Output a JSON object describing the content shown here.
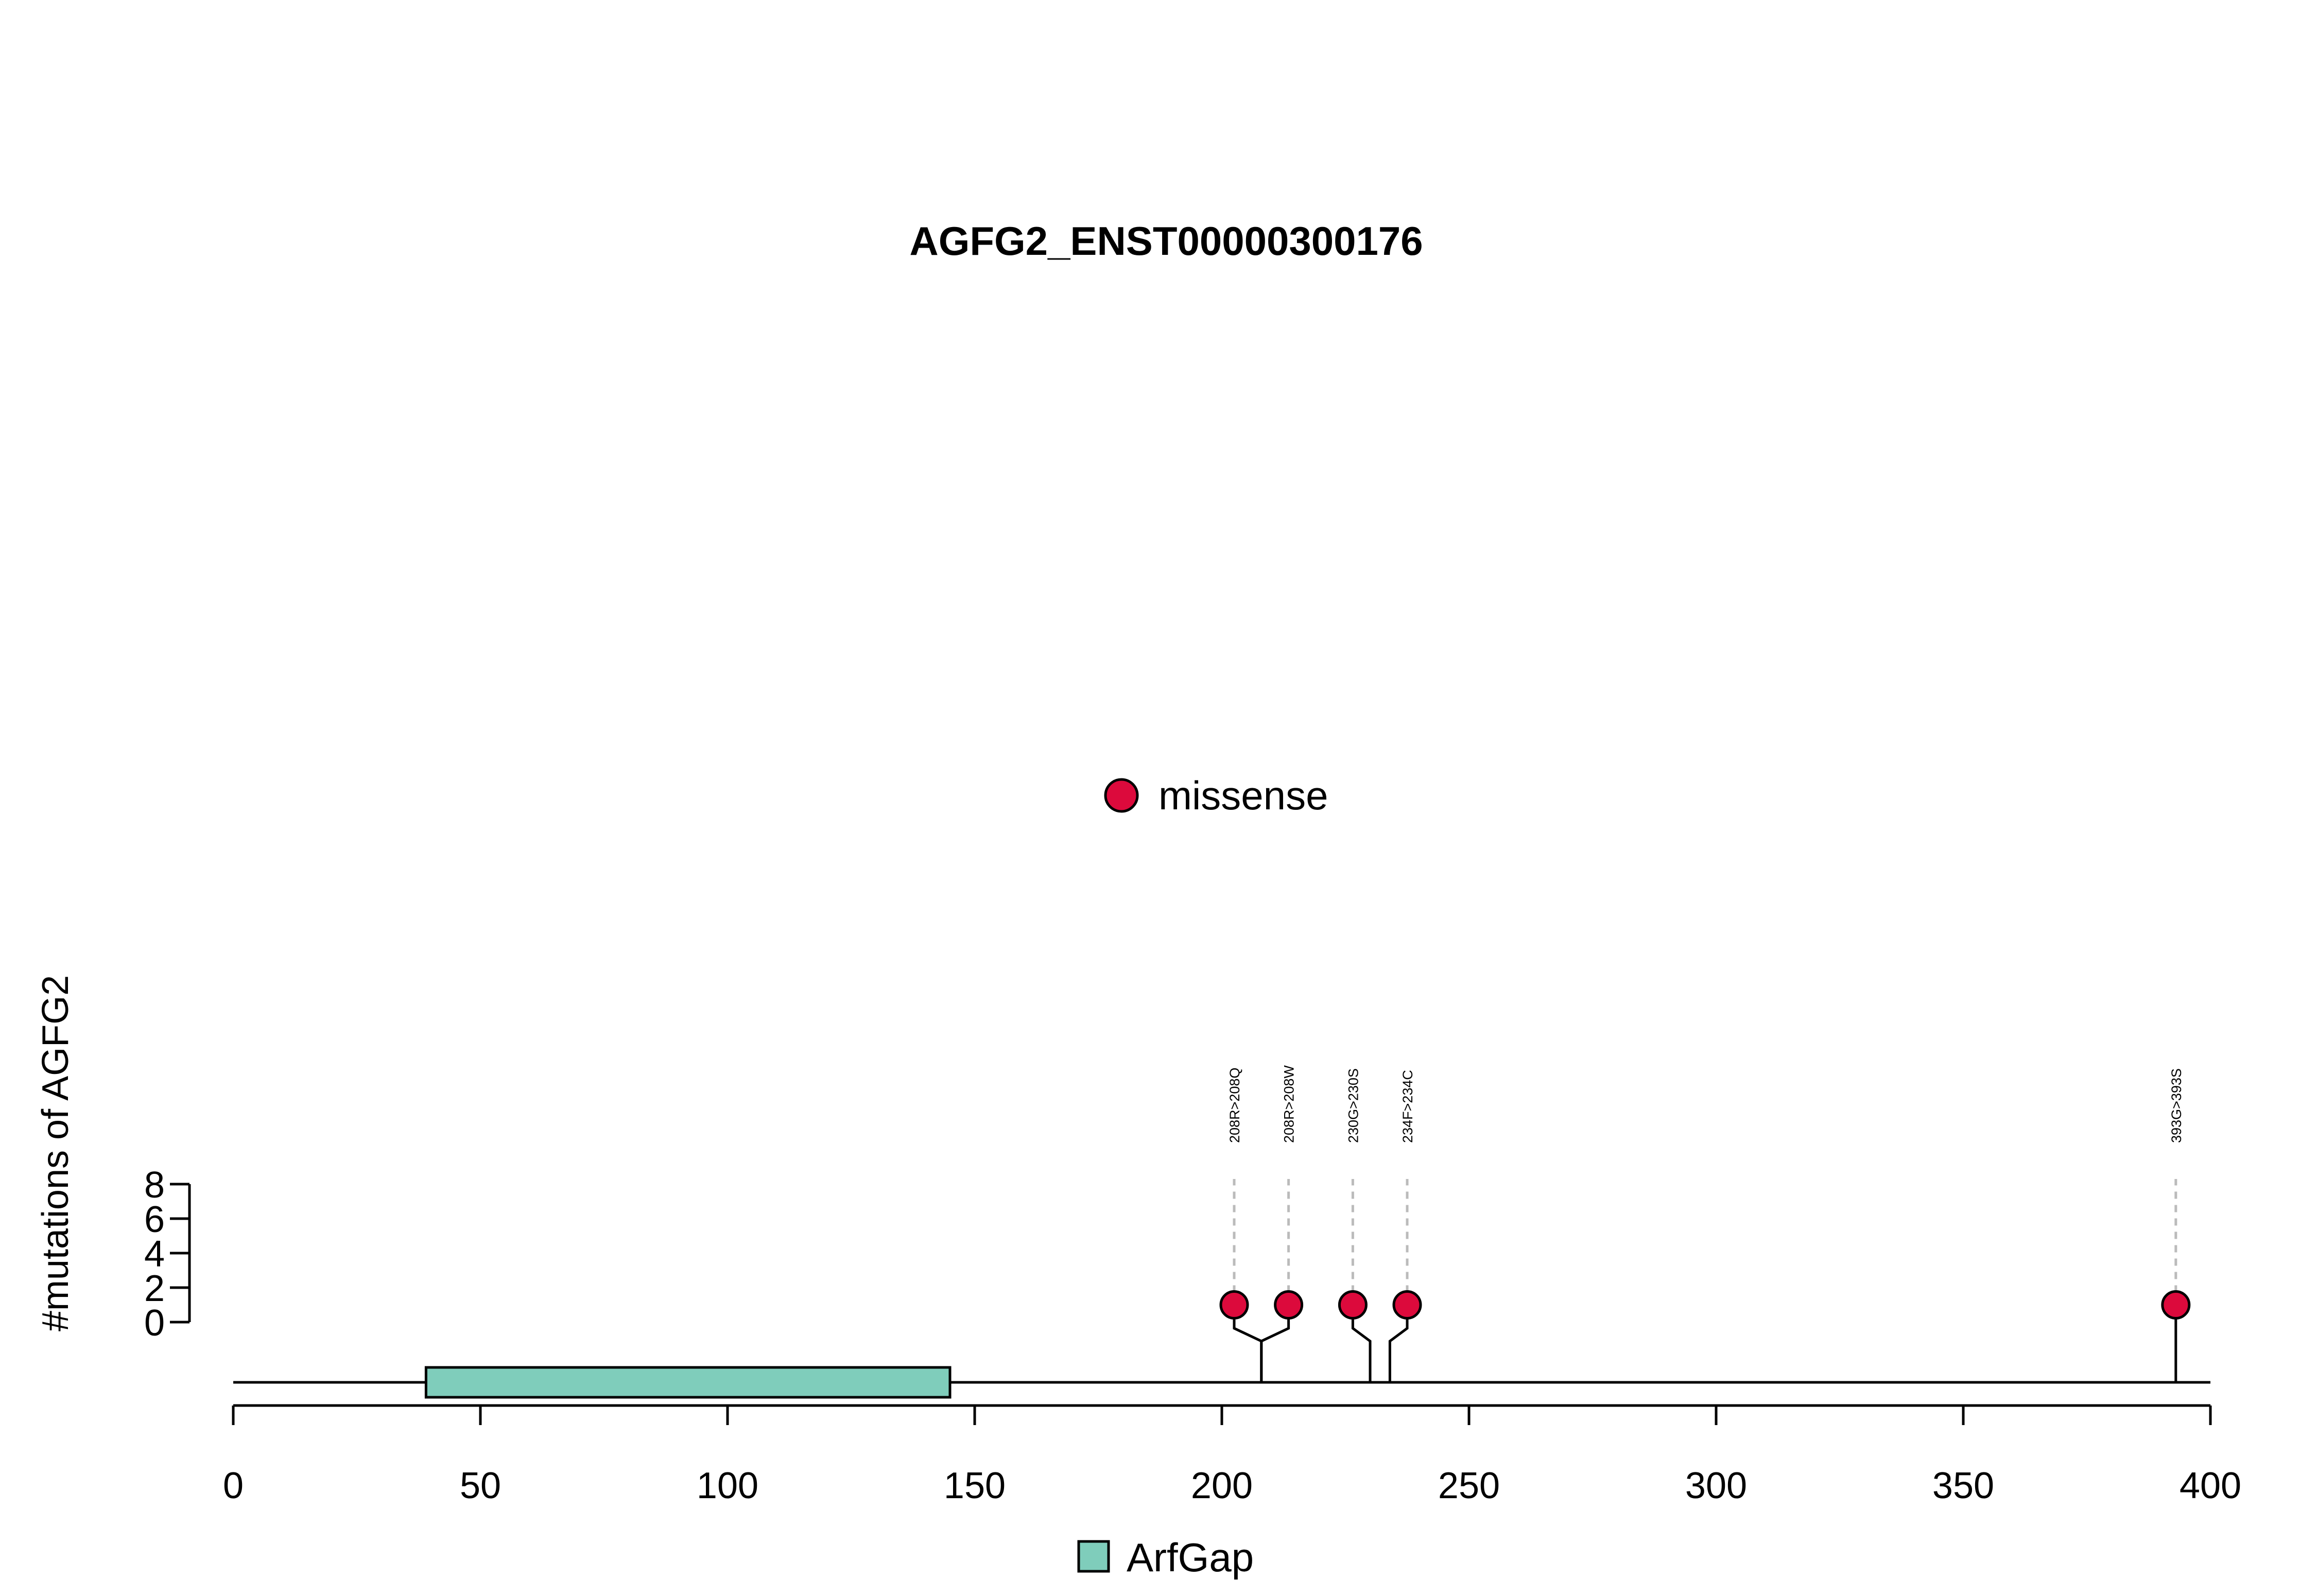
{
  "chart_data": {
    "type": "lollipop",
    "title": "AGFG2_ENST00000300176",
    "xlabel": "",
    "ylabel": "#mutations of AGFG2",
    "xlim": [
      0,
      400
    ],
    "x_ticks": [
      "0",
      "50",
      "100",
      "150",
      "200",
      "250",
      "300",
      "350",
      "400"
    ],
    "y_ticks": [
      "0",
      "2",
      "4",
      "6",
      "8"
    ],
    "ylim": [
      0,
      8
    ],
    "grid": false,
    "legend_top": {
      "label": "missense",
      "color": "#DC0A3C",
      "placement": "top-center"
    },
    "legend_bottom": {
      "label": "ArfGap",
      "color": "#7FCDBB",
      "placement": "bottom-center"
    },
    "protein_length": 400,
    "domains": [
      {
        "name": "ArfGap",
        "start": 39,
        "end": 145,
        "color": "#7FCDBB"
      }
    ],
    "mutations": [
      {
        "label": "208R>208Q",
        "position": 208,
        "count": 1,
        "type": "missense"
      },
      {
        "label": "208R>208W",
        "position": 208,
        "count": 1,
        "type": "missense"
      },
      {
        "label": "230G>230S",
        "position": 230,
        "count": 1,
        "type": "missense"
      },
      {
        "label": "234F>234C",
        "position": 234,
        "count": 1,
        "type": "missense"
      },
      {
        "label": "393G>393S",
        "position": 393,
        "count": 1,
        "type": "missense"
      }
    ]
  }
}
